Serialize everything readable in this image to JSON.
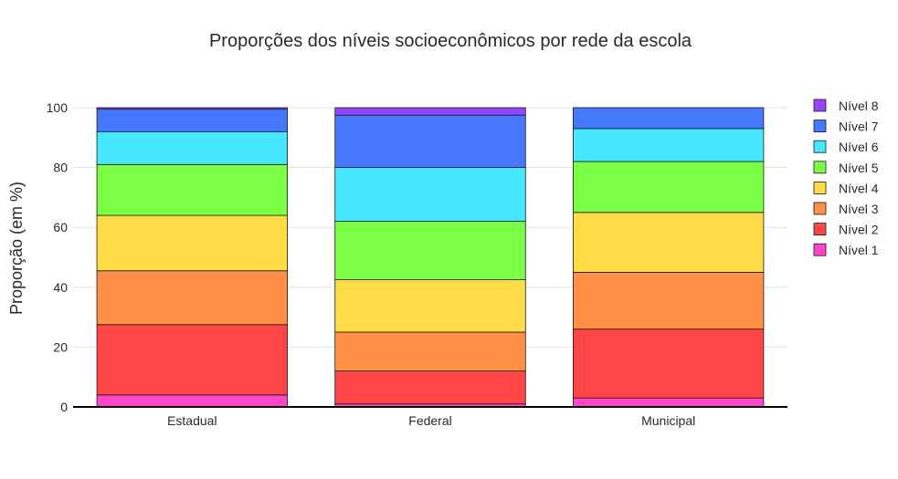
{
  "chart_data": {
    "type": "bar",
    "stacked": true,
    "title": "Proporções dos níveis socioeconômicos por rede da escola",
    "xlabel": "",
    "ylabel": "Proporção (em %)",
    "ylim": [
      0,
      100
    ],
    "yticks": [
      0,
      20,
      40,
      60,
      80,
      100
    ],
    "categories": [
      "Estadual",
      "Federal",
      "Municipal"
    ],
    "grid": true,
    "legend_position": "right",
    "series": [
      {
        "name": "Nível 1",
        "color": "#ff45c8",
        "values": [
          4,
          1,
          3
        ]
      },
      {
        "name": "Nível 2",
        "color": "#ff4545",
        "values": [
          23.5,
          11,
          23
        ]
      },
      {
        "name": "Nível 3",
        "color": "#ff9045",
        "values": [
          18,
          13,
          19
        ]
      },
      {
        "name": "Nível 4",
        "color": "#ffdb45",
        "values": [
          18.5,
          17.5,
          20
        ]
      },
      {
        "name": "Nível 5",
        "color": "#7aff45",
        "values": [
          17,
          19.5,
          17
        ]
      },
      {
        "name": "Nível 6",
        "color": "#45e8ff",
        "values": [
          11,
          18,
          11
        ]
      },
      {
        "name": "Nível 7",
        "color": "#4578ff",
        "values": [
          7.5,
          17.5,
          7
        ]
      },
      {
        "name": "Nível 8",
        "color": "#9545ff",
        "values": [
          0.5,
          2.5,
          0
        ]
      }
    ]
  }
}
